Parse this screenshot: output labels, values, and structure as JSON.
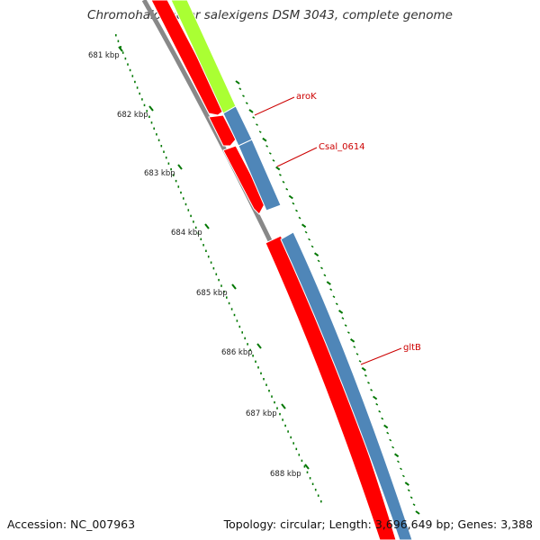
{
  "title": "Chromohalobacter salexigens DSM 3043, complete genome",
  "footer": {
    "accession": "Accession: NC_007963",
    "topology": "Topology: circular; Length: 3,696,649 bp; Genes: 3,388"
  },
  "colors": {
    "cds_red": "#ff0000",
    "cds_blue": "#4f86b8",
    "cds_green": "#aaff33",
    "backbone": "#888888",
    "tick": "#007700",
    "label_line": "#cc0000"
  },
  "ruler": {
    "labels": [
      "681 kbp",
      "682 kbp",
      "683 kbp",
      "684 kbp",
      "685 kbp",
      "686 kbp",
      "687 kbp",
      "688 kbp"
    ]
  },
  "genes": [
    {
      "name": "aroK"
    },
    {
      "name": "Csal_0614"
    },
    {
      "name": "gltB"
    }
  ]
}
